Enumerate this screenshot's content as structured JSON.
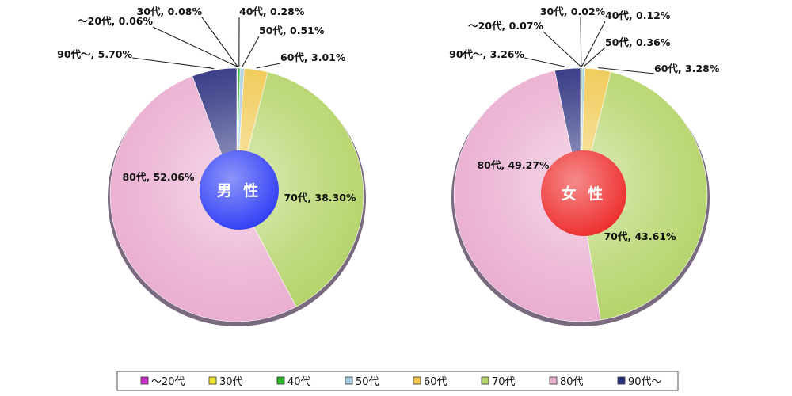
{
  "chart_data": [
    {
      "type": "pie",
      "center_label": "男 性",
      "center_color": "#2f3df5",
      "categories": [
        "～20代",
        "30代",
        "40代",
        "50代",
        "60代",
        "70代",
        "80代",
        "90代～"
      ],
      "values": [
        0.06,
        0.08,
        0.28,
        0.51,
        3.01,
        38.3,
        52.06,
        5.7
      ],
      "labels": [
        "～20代, 0.06%",
        "30代, 0.08%",
        "40代, 0.28%",
        "50代, 0.51%",
        "60代, 3.01%",
        "70代, 38.30%",
        "80代, 52.06%",
        "90代～, 5.70%"
      ]
    },
    {
      "type": "pie",
      "center_label": "女 性",
      "center_color": "#ee2b2b",
      "categories": [
        "～20代",
        "30代",
        "40代",
        "50代",
        "60代",
        "70代",
        "80代",
        "90代～"
      ],
      "values": [
        0.07,
        0.02,
        0.12,
        0.36,
        3.28,
        43.61,
        49.27,
        3.26
      ],
      "labels": [
        "～20代, 0.07%",
        "30代, 0.02%",
        "40代, 0.12%",
        "50代, 0.36%",
        "60代, 3.28%",
        "70代, 43.61%",
        "80代, 49.27%",
        "90代～, 3.26%"
      ]
    }
  ],
  "legend": {
    "items": [
      {
        "label": "～20代",
        "color": "#cc33cc"
      },
      {
        "label": "30代",
        "color": "#f2e833"
      },
      {
        "label": "40代",
        "color": "#2bb52b"
      },
      {
        "label": "50代",
        "color": "#a9cde0"
      },
      {
        "label": "60代",
        "color": "#f0c850"
      },
      {
        "label": "70代",
        "color": "#b5d46a"
      },
      {
        "label": "80代",
        "color": "#eaaed0"
      },
      {
        "label": "90代～",
        "color": "#2a2f7e"
      }
    ]
  }
}
